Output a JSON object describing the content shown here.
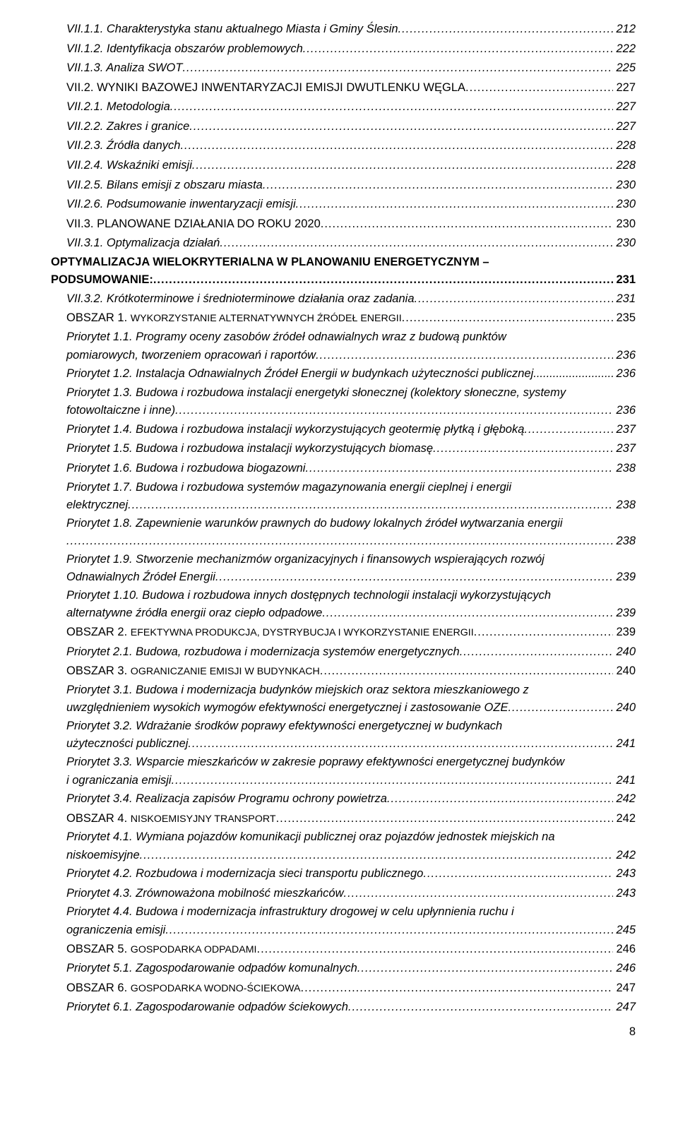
{
  "footer_page": "8",
  "entries": [
    {
      "indent": "lvl-1",
      "style": "ital",
      "lines": [
        "VII.1.1. Charakterystyka stanu aktualnego Miasta i Gminy Ślesin"
      ],
      "page": "212"
    },
    {
      "indent": "lvl-1",
      "style": "ital",
      "lines": [
        "VII.1.2. Identyfikacja obszarów problemowych"
      ],
      "page": "222"
    },
    {
      "indent": "lvl-1",
      "style": "ital",
      "lines": [
        "VII.1.3. Analiza SWOT"
      ],
      "page": "225"
    },
    {
      "indent": "lvl-1-noital",
      "style": "norm",
      "lines": [
        "VII.2. WYNIKI BAZOWEJ INWENTARYZACJI EMISJI DWUTLENKU WĘGLA"
      ],
      "page": "227"
    },
    {
      "indent": "lvl-1",
      "style": "ital",
      "lines": [
        "VII.2.1. Metodologia"
      ],
      "page": "227"
    },
    {
      "indent": "lvl-1",
      "style": "ital",
      "lines": [
        "VII.2.2. Zakres i granice"
      ],
      "page": "227"
    },
    {
      "indent": "lvl-1",
      "style": "ital",
      "lines": [
        "VII.2.3. Źródła danych"
      ],
      "page": "228"
    },
    {
      "indent": "lvl-1",
      "style": "ital",
      "lines": [
        "VII.2.4. Wskaźniki emisji"
      ],
      "page": "228"
    },
    {
      "indent": "lvl-1",
      "style": "ital",
      "lines": [
        "VII.2.5. Bilans emisji z obszaru miasta"
      ],
      "page": "230"
    },
    {
      "indent": "lvl-1",
      "style": "ital",
      "lines": [
        "VII.2.6. Podsumowanie inwentaryzacji emisji"
      ],
      "page": "230"
    },
    {
      "indent": "lvl-1-noital",
      "style": "norm",
      "lines": [
        "VII.3. PLANOWANE DZIAŁANIA DO ROKU 2020"
      ],
      "page": "230"
    },
    {
      "indent": "lvl-1",
      "style": "ital",
      "lines": [
        "VII.3.1. Optymalizacja działań"
      ],
      "page": "230"
    },
    {
      "indent": "lvl-0",
      "style": "norm",
      "lines": [
        "OPTYMALIZACJA WIELOKRYTERIALNA W PLANOWANIU ENERGETYCZNYM –",
        "PODSUMOWANIE:"
      ],
      "page": "231",
      "bold": true
    },
    {
      "indent": "lvl-1",
      "style": "ital",
      "lines": [
        "VII.3.2. Krótkoterminowe i średnioterminowe działania oraz zadania"
      ],
      "page": "231"
    },
    {
      "indent": "lvl-1-noital",
      "style": "norm",
      "lines": [
        "OBSZAR 1. WYKORZYSTANIE ALTERNATYWNYCH ŹRÓDEŁ ENERGII"
      ],
      "page": "235",
      "smallcapsPrefix": "OBSZAR 1. ",
      "smallcapsRest": "WYKORZYSTANIE ALTERNATYWNYCH ŹRÓDEŁ ENERGII"
    },
    {
      "indent": "lvl-2",
      "style": "ital",
      "lines": [
        "Priorytet 1.1. Programy oceny zasobów źródeł odnawialnych wraz z budową punktów",
        "pomiarowych, tworzeniem opracowań i raportów"
      ],
      "page": "236"
    },
    {
      "indent": "lvl-2",
      "style": "ital",
      "lines": [
        "Priorytet 1.2. Instalacja Odnawialnych Źródeł Energii w budynkach użyteczności publicznej"
      ],
      "page": "236",
      "tightDots": true
    },
    {
      "indent": "lvl-2",
      "style": "ital",
      "lines": [
        "Priorytet 1.3. Budowa i rozbudowa instalacji energetyki słonecznej (kolektory słoneczne, systemy",
        "fotowoltaiczne i inne)"
      ],
      "page": "236"
    },
    {
      "indent": "lvl-2",
      "style": "ital",
      "lines": [
        "Priorytet 1.4. Budowa i rozbudowa instalacji wykorzystujących geotermię płytką i głęboką"
      ],
      "page": "237"
    },
    {
      "indent": "lvl-2",
      "style": "ital",
      "lines": [
        "Priorytet 1.5. Budowa i rozbudowa instalacji wykorzystujących biomasę"
      ],
      "page": "237"
    },
    {
      "indent": "lvl-2",
      "style": "ital",
      "lines": [
        "Priorytet 1.6. Budowa i rozbudowa biogazowni"
      ],
      "page": "238"
    },
    {
      "indent": "lvl-2",
      "style": "ital",
      "lines": [
        "Priorytet 1.7. Budowa i rozbudowa systemów magazynowania energii cieplnej i energii",
        "elektrycznej"
      ],
      "page": "238"
    },
    {
      "indent": "lvl-2",
      "style": "ital",
      "lines": [
        "Priorytet 1.8. Zapewnienie warunków prawnych do budowy lokalnych źródeł wytwarzania energii",
        ""
      ],
      "page": "238"
    },
    {
      "indent": "lvl-2",
      "style": "ital",
      "lines": [
        "Priorytet 1.9. Stworzenie mechanizmów organizacyjnych i finansowych wspierających rozwój",
        "Odnawialnych Źródeł Energii"
      ],
      "page": "239"
    },
    {
      "indent": "lvl-2",
      "style": "ital",
      "lines": [
        "Priorytet 1.10. Budowa i rozbudowa innych dostępnych technologii instalacji wykorzystujących",
        "alternatywne źródła energii oraz ciepło odpadowe"
      ],
      "page": "239"
    },
    {
      "indent": "lvl-1-noital",
      "style": "norm",
      "lines": [
        "OBSZAR 2. EFEKTYWNA PRODUKCJA, DYSTRYBUCJA I WYKORZYSTANIE ENERGII"
      ],
      "page": "239",
      "smallcapsPrefix": "OBSZAR 2. ",
      "smallcapsRest": "EFEKTYWNA PRODUKCJA, DYSTRYBUCJA I WYKORZYSTANIE ENERGII"
    },
    {
      "indent": "lvl-2",
      "style": "ital",
      "lines": [
        "Priorytet 2.1. Budowa, rozbudowa i modernizacja systemów energetycznych"
      ],
      "page": "240"
    },
    {
      "indent": "lvl-1-noital",
      "style": "norm",
      "lines": [
        "OBSZAR 3. OGRANICZANIE EMISJI W BUDYNKACH"
      ],
      "page": "240",
      "smallcapsPrefix": "OBSZAR 3. ",
      "smallcapsRest": "OGRANICZANIE EMISJI W BUDYNKACH"
    },
    {
      "indent": "lvl-2",
      "style": "ital",
      "lines": [
        "Priorytet 3.1. Budowa i modernizacja budynków miejskich oraz sektora mieszkaniowego z",
        "uwzględnieniem wysokich wymogów efektywności energetycznej i zastosowanie OZE"
      ],
      "page": "240"
    },
    {
      "indent": "lvl-2",
      "style": "ital",
      "lines": [
        "Priorytet 3.2. Wdrażanie środków poprawy efektywności energetycznej w budynkach",
        "użyteczności publicznej"
      ],
      "page": "241"
    },
    {
      "indent": "lvl-2",
      "style": "ital",
      "lines": [
        "Priorytet 3.3. Wsparcie mieszkańców w zakresie poprawy efektywności energetycznej budynków",
        "i ograniczania emisji"
      ],
      "page": "241"
    },
    {
      "indent": "lvl-2",
      "style": "ital",
      "lines": [
        "Priorytet 3.4. Realizacja zapisów Programu ochrony powietrza"
      ],
      "page": "242"
    },
    {
      "indent": "lvl-1-noital",
      "style": "norm",
      "lines": [
        "OBSZAR 4. NISKOEMISYJNY TRANSPORT"
      ],
      "page": "242",
      "smallcapsPrefix": "OBSZAR 4. ",
      "smallcapsRest": "NISKOEMISYJNY TRANSPORT"
    },
    {
      "indent": "lvl-2",
      "style": "ital",
      "lines": [
        "Priorytet 4.1. Wymiana pojazdów komunikacji publicznej oraz pojazdów jednostek miejskich na",
        "niskoemisyjne"
      ],
      "page": "242"
    },
    {
      "indent": "lvl-2",
      "style": "ital",
      "lines": [
        "Priorytet 4.2. Rozbudowa i modernizacja sieci transportu publicznego"
      ],
      "page": "243"
    },
    {
      "indent": "lvl-2",
      "style": "ital",
      "lines": [
        "Priorytet 4.3. Zrównoważona mobilność mieszkańców"
      ],
      "page": "243"
    },
    {
      "indent": "lvl-2",
      "style": "ital",
      "lines": [
        "Priorytet 4.4. Budowa i modernizacja infrastruktury drogowej w celu upłynnienia ruchu i",
        "ograniczenia emisji"
      ],
      "page": "245"
    },
    {
      "indent": "lvl-1-noital",
      "style": "norm",
      "lines": [
        "OBSZAR 5. GOSPODARKA ODPADAMI"
      ],
      "page": "246",
      "smallcapsPrefix": "OBSZAR 5. ",
      "smallcapsRest": "GOSPODARKA ODPADAMI"
    },
    {
      "indent": "lvl-2",
      "style": "ital",
      "lines": [
        "Priorytet 5.1. Zagospodarowanie odpadów komunalnych"
      ],
      "page": "246"
    },
    {
      "indent": "lvl-1-noital",
      "style": "norm",
      "lines": [
        "OBSZAR 6. GOSPODARKA WODNO-ŚCIEKOWA"
      ],
      "page": "247",
      "smallcapsPrefix": "OBSZAR 6. ",
      "smallcapsRest": "GOSPODARKA WODNO-ŚCIEKOWA"
    },
    {
      "indent": "lvl-2",
      "style": "ital",
      "lines": [
        "Priorytet 6.1. Zagospodarowanie odpadów ściekowych"
      ],
      "page": "247"
    }
  ]
}
